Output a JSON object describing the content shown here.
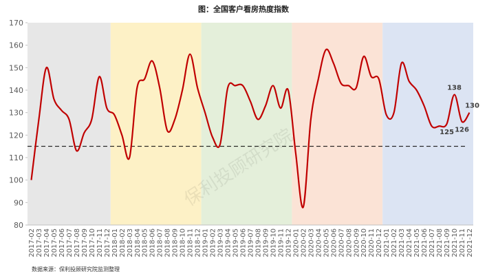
{
  "chart_data": {
    "type": "line",
    "title": "图：全国客户看房热度指数",
    "source": "数据来源：保利投顾研究院监测整理",
    "watermark": "保利投顾研究院",
    "categories": [
      "2017-02",
      "2017-03",
      "2017-04",
      "2017-05",
      "2017-06",
      "2017-07",
      "2017-08",
      "2017-09",
      "2017-10",
      "2017-11",
      "2017-12",
      "2018-01",
      "2018-02",
      "2018-03",
      "2018-04",
      "2018-05",
      "2018-06",
      "2018-07",
      "2018-08",
      "2018-09",
      "2018-10",
      "2018-11",
      "2018-12",
      "2019-01",
      "2019-02",
      "2019-03",
      "2019-04",
      "2019-05",
      "2019-06",
      "2019-07",
      "2019-08",
      "2019-09",
      "2019-10",
      "2019-11",
      "2019-12",
      "2020-01",
      "2020-02",
      "2020-03",
      "2020-04",
      "2020-05",
      "2020-06",
      "2020-07",
      "2020-08",
      "2020-09",
      "2020-10",
      "2020-11",
      "2020-12",
      "2021-01",
      "2021-02",
      "2021-03",
      "2021-04",
      "2021-05",
      "2021-06",
      "2021-07",
      "2021-08",
      "2021-09",
      "2021-10",
      "2021-11",
      "2021-12"
    ],
    "series": [
      {
        "color": "#c00000",
        "values": [
          100,
          127,
          150,
          136,
          131,
          127,
          113,
          121,
          127,
          146,
          132,
          129,
          120,
          110,
          141,
          145,
          153,
          141,
          122,
          127,
          140,
          156,
          141,
          130,
          119,
          116,
          141,
          142,
          142,
          135,
          127,
          133,
          142,
          132,
          140,
          112,
          88,
          127,
          145,
          158,
          152,
          143,
          142,
          141,
          155,
          146,
          145,
          129,
          130,
          152,
          144,
          140,
          133,
          124,
          124,
          125,
          138,
          126,
          130
        ],
        "value_labels": [
          null,
          null,
          null,
          null,
          null,
          null,
          null,
          null,
          null,
          null,
          null,
          null,
          null,
          null,
          null,
          null,
          null,
          null,
          null,
          null,
          null,
          null,
          null,
          null,
          null,
          null,
          null,
          null,
          null,
          null,
          null,
          null,
          null,
          null,
          null,
          null,
          null,
          null,
          null,
          null,
          null,
          null,
          null,
          null,
          null,
          null,
          null,
          null,
          null,
          null,
          null,
          null,
          null,
          null,
          null,
          "125",
          "138",
          "126",
          "130"
        ]
      }
    ],
    "ylim": [
      80,
      170
    ],
    "yticks": [
      80,
      90,
      100,
      110,
      120,
      130,
      140,
      150,
      160,
      170
    ],
    "reference_line": 115,
    "bands": [
      {
        "from": "2017-02",
        "to": "2017-12",
        "color": "#e7e7e7"
      },
      {
        "from": "2018-01",
        "to": "2018-12",
        "color": "#fdf1c6"
      },
      {
        "from": "2019-01",
        "to": "2019-12",
        "color": "#e4efda"
      },
      {
        "from": "2020-01",
        "to": "2020-12",
        "color": "#fbe3d6"
      },
      {
        "from": "2021-01",
        "to": "2021-12",
        "color": "#dce4f3"
      }
    ]
  }
}
